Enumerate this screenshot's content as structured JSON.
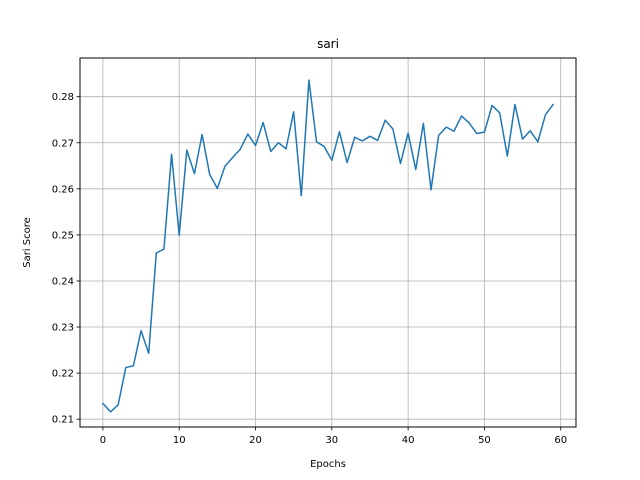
{
  "chart_data": {
    "type": "line",
    "title": "sari",
    "xlabel": "Epochs",
    "ylabel": "Sari Score",
    "xlim": [
      -3,
      62
    ],
    "ylim": [
      0.2083,
      0.2884
    ],
    "xticks": [
      0,
      10,
      20,
      30,
      40,
      50,
      60
    ],
    "yticks": [
      0.21,
      0.22,
      0.23,
      0.24,
      0.25,
      0.26,
      0.27,
      0.28
    ],
    "ytick_labels": [
      "0.21",
      "0.22",
      "0.23",
      "0.24",
      "0.25",
      "0.26",
      "0.27",
      "0.28"
    ],
    "grid": true,
    "line_color": "#1f77b4",
    "series": [
      {
        "x": [
          0,
          1,
          2,
          3,
          4,
          5,
          6,
          7,
          8,
          9,
          10,
          11,
          12,
          13,
          14,
          15,
          16,
          17,
          18,
          19,
          20,
          21,
          22,
          23,
          24,
          25,
          26,
          27,
          28,
          29,
          30,
          31,
          32,
          33,
          34,
          35,
          36,
          37,
          38,
          39,
          40,
          41,
          42,
          43,
          44,
          45,
          46,
          47,
          48,
          49,
          50,
          51,
          52,
          53,
          54,
          55,
          56,
          57,
          58,
          59
        ],
        "values": [
          0.2134,
          0.2116,
          0.2131,
          0.2212,
          0.2216,
          0.2292,
          0.2243,
          0.2461,
          0.2469,
          0.2675,
          0.2499,
          0.2684,
          0.2633,
          0.2718,
          0.2631,
          0.2601,
          0.2649,
          0.2668,
          0.2686,
          0.2719,
          0.2694,
          0.2744,
          0.2681,
          0.27,
          0.2687,
          0.2767,
          0.2585,
          0.2836,
          0.2702,
          0.2692,
          0.2662,
          0.2724,
          0.2657,
          0.2712,
          0.2704,
          0.2714,
          0.2705,
          0.2749,
          0.273,
          0.2655,
          0.2721,
          0.2642,
          0.2742,
          0.2598,
          0.2716,
          0.2734,
          0.2725,
          0.2758,
          0.2743,
          0.272,
          0.2723,
          0.2781,
          0.2765,
          0.2671,
          0.2783,
          0.2708,
          0.2726,
          0.2702,
          0.2761,
          0.2783
        ]
      }
    ]
  }
}
